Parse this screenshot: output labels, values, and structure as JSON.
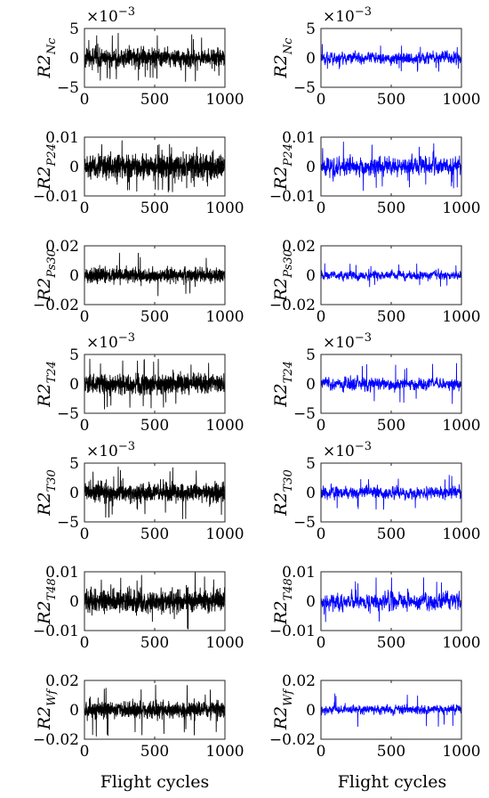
{
  "figure": {
    "xlabel": "Flight cycles",
    "series_colors": {
      "left": "#000000",
      "right": "#0000ff"
    }
  },
  "chart_data": [
    {
      "type": "line",
      "panel": "left",
      "ylabel": "R2",
      "ylabel_sub": "Nc",
      "exponent_label": "×10",
      "exponent": "−3",
      "xlim": [
        0,
        1000
      ],
      "ylim": [
        -5,
        5
      ],
      "xticks": [
        0,
        500,
        1000
      ],
      "xtick_labels": [
        "0",
        "500",
        "1000"
      ],
      "yticks": [
        5,
        0,
        -5
      ],
      "ytick_labels": [
        "5",
        "0",
        "−5"
      ],
      "noise_amplitude": 1.3,
      "spike_max": 4.2,
      "n_points": 1000,
      "grid": false,
      "color": "#000000"
    },
    {
      "type": "line",
      "panel": "right",
      "ylabel": "R2",
      "ylabel_sub": "Nc",
      "exponent_label": "×10",
      "exponent": "−3",
      "xlim": [
        0,
        1000
      ],
      "ylim": [
        -5,
        5
      ],
      "xticks": [
        0,
        500,
        1000
      ],
      "xtick_labels": [
        "0",
        "500",
        "1000"
      ],
      "yticks": [
        5,
        0,
        -5
      ],
      "ytick_labels": [
        "5",
        "0",
        "−5"
      ],
      "noise_amplitude": 0.9,
      "spike_max": 2.3,
      "n_points": 1000,
      "grid": false,
      "color": "#0000ff"
    },
    {
      "type": "line",
      "panel": "left",
      "ylabel": "R2",
      "ylabel_sub": "P24",
      "exponent_label": "",
      "exponent": "",
      "xlim": [
        0,
        1000
      ],
      "ylim": [
        -0.01,
        0.01
      ],
      "xticks": [
        0,
        500,
        1000
      ],
      "xtick_labels": [
        "0",
        "500",
        "1000"
      ],
      "yticks": [
        0.01,
        0,
        -0.01
      ],
      "ytick_labels": [
        "0.01",
        "0",
        "−0.01"
      ],
      "noise_amplitude": 0.0036,
      "spike_max": 0.0093,
      "n_points": 1000,
      "grid": false,
      "color": "#000000"
    },
    {
      "type": "line",
      "panel": "right",
      "ylabel": "R2",
      "ylabel_sub": "P24",
      "exponent_label": "",
      "exponent": "",
      "xlim": [
        0,
        1000
      ],
      "ylim": [
        -0.01,
        0.01
      ],
      "xticks": [
        0,
        500,
        1000
      ],
      "xtick_labels": [
        "0",
        "500",
        "1000"
      ],
      "yticks": [
        0.01,
        0,
        -0.01
      ],
      "ytick_labels": [
        "0.01",
        "0",
        "−0.01"
      ],
      "noise_amplitude": 0.003,
      "spike_max": 0.0085,
      "n_points": 1000,
      "grid": false,
      "color": "#0000ff"
    },
    {
      "type": "line",
      "panel": "left",
      "ylabel": "R2",
      "ylabel_sub": "Ps30",
      "exponent_label": "",
      "exponent": "",
      "xlim": [
        0,
        1000
      ],
      "ylim": [
        -0.02,
        0.02
      ],
      "xticks": [
        0,
        500,
        1000
      ],
      "xtick_labels": [
        "0",
        "500",
        "1000"
      ],
      "yticks": [
        0.02,
        0,
        -0.02
      ],
      "ytick_labels": [
        "0.02",
        "0",
        "−0.02"
      ],
      "noise_amplitude": 0.0042,
      "spike_max": 0.016,
      "n_points": 1000,
      "grid": false,
      "color": "#000000"
    },
    {
      "type": "line",
      "panel": "right",
      "ylabel": "R2",
      "ylabel_sub": "Ps30",
      "exponent_label": "",
      "exponent": "",
      "xlim": [
        0,
        1000
      ],
      "ylim": [
        -0.02,
        0.02
      ],
      "xticks": [
        0,
        500,
        1000
      ],
      "xtick_labels": [
        "0",
        "500",
        "1000"
      ],
      "yticks": [
        0.02,
        0,
        -0.02
      ],
      "ytick_labels": [
        "0.02",
        "0",
        "−0.02"
      ],
      "noise_amplitude": 0.0028,
      "spike_max": 0.008,
      "n_points": 1000,
      "grid": false,
      "color": "#0000ff"
    },
    {
      "type": "line",
      "panel": "left",
      "ylabel": "R2",
      "ylabel_sub": "T24",
      "exponent_label": "×10",
      "exponent": "−3",
      "xlim": [
        0,
        1000
      ],
      "ylim": [
        -5,
        5
      ],
      "xticks": [
        0,
        500,
        1000
      ],
      "xtick_labels": [
        "0",
        "500",
        "1000"
      ],
      "yticks": [
        5,
        0,
        -5
      ],
      "ytick_labels": [
        "5",
        "0",
        "−5"
      ],
      "noise_amplitude": 1.4,
      "spike_max": 4.3,
      "n_points": 1000,
      "grid": false,
      "color": "#000000"
    },
    {
      "type": "line",
      "panel": "right",
      "ylabel": "R2",
      "ylabel_sub": "T24",
      "exponent_label": "×10",
      "exponent": "−3",
      "xlim": [
        0,
        1000
      ],
      "ylim": [
        -5,
        5
      ],
      "xticks": [
        0,
        500,
        1000
      ],
      "xtick_labels": [
        "0",
        "500",
        "1000"
      ],
      "yticks": [
        5,
        0,
        -5
      ],
      "ytick_labels": [
        "5",
        "0",
        "−5"
      ],
      "noise_amplitude": 1.0,
      "spike_max": 3.5,
      "n_points": 1000,
      "grid": false,
      "color": "#0000ff"
    },
    {
      "type": "line",
      "panel": "left",
      "ylabel": "R2",
      "ylabel_sub": "T30",
      "exponent_label": "×10",
      "exponent": "−3",
      "xlim": [
        0,
        1000
      ],
      "ylim": [
        -5,
        5
      ],
      "xticks": [
        0,
        500,
        1000
      ],
      "xtick_labels": [
        "0",
        "500",
        "1000"
      ],
      "yticks": [
        5,
        0,
        -5
      ],
      "ytick_labels": [
        "5",
        "0",
        "−5"
      ],
      "noise_amplitude": 1.4,
      "spike_max": 4.6,
      "n_points": 1000,
      "grid": false,
      "color": "#000000"
    },
    {
      "type": "line",
      "panel": "right",
      "ylabel": "R2",
      "ylabel_sub": "T30",
      "exponent_label": "×10",
      "exponent": "−3",
      "xlim": [
        0,
        1000
      ],
      "ylim": [
        -5,
        5
      ],
      "xticks": [
        0,
        500,
        1000
      ],
      "xtick_labels": [
        "0",
        "500",
        "1000"
      ],
      "yticks": [
        5,
        0,
        -5
      ],
      "ytick_labels": [
        "5",
        "0",
        "−5"
      ],
      "noise_amplitude": 1.0,
      "spike_max": 3.0,
      "n_points": 1000,
      "grid": false,
      "color": "#0000ff"
    },
    {
      "type": "line",
      "panel": "left",
      "ylabel": "R2",
      "ylabel_sub": "T48",
      "exponent_label": "",
      "exponent": "",
      "xlim": [
        0,
        1000
      ],
      "ylim": [
        -0.01,
        0.01
      ],
      "xticks": [
        0,
        500,
        1000
      ],
      "xtick_labels": [
        "0",
        "500",
        "1000"
      ],
      "yticks": [
        0.01,
        0,
        -0.01
      ],
      "ytick_labels": [
        "0.01",
        "0",
        "−0.01"
      ],
      "noise_amplitude": 0.0034,
      "spike_max": 0.0098,
      "n_points": 1000,
      "grid": false,
      "color": "#000000"
    },
    {
      "type": "line",
      "panel": "right",
      "ylabel": "R2",
      "ylabel_sub": "T48",
      "exponent_label": "",
      "exponent": "",
      "xlim": [
        0,
        1000
      ],
      "ylim": [
        -0.01,
        0.01
      ],
      "xticks": [
        0,
        500,
        1000
      ],
      "xtick_labels": [
        "0",
        "500",
        "1000"
      ],
      "yticks": [
        0.01,
        0,
        -0.01
      ],
      "ytick_labels": [
        "0.01",
        "0",
        "−0.01"
      ],
      "noise_amplitude": 0.0028,
      "spike_max": 0.0082,
      "n_points": 1000,
      "grid": false,
      "color": "#0000ff"
    },
    {
      "type": "line",
      "panel": "left",
      "ylabel": "R2",
      "ylabel_sub": "Wf",
      "exponent_label": "",
      "exponent": "",
      "xlim": [
        0,
        1000
      ],
      "ylim": [
        -0.02,
        0.02
      ],
      "xticks": [
        0,
        500,
        1000
      ],
      "xtick_labels": [
        "0",
        "500",
        "1000"
      ],
      "yticks": [
        0.02,
        0,
        -0.02
      ],
      "ytick_labels": [
        "0.02",
        "0",
        "−0.02"
      ],
      "noise_amplitude": 0.0048,
      "spike_max": 0.018,
      "n_points": 1000,
      "grid": false,
      "color": "#000000"
    },
    {
      "type": "line",
      "panel": "right",
      "ylabel": "R2",
      "ylabel_sub": "Wf",
      "exponent_label": "",
      "exponent": "",
      "xlim": [
        0,
        1000
      ],
      "ylim": [
        -0.02,
        0.02
      ],
      "xticks": [
        0,
        500,
        1000
      ],
      "xtick_labels": [
        "0",
        "500",
        "1000"
      ],
      "yticks": [
        0.02,
        0,
        -0.02
      ],
      "ytick_labels": [
        "0.02",
        "0",
        "−0.02"
      ],
      "noise_amplitude": 0.0028,
      "spike_max": 0.012,
      "n_points": 1000,
      "grid": false,
      "color": "#0000ff"
    }
  ]
}
